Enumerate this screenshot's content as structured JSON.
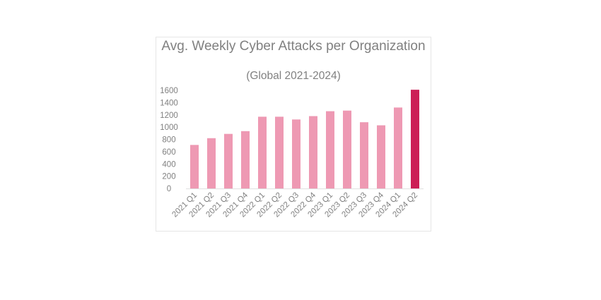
{
  "chart_data": {
    "type": "bar",
    "title": "Avg. Weekly Cyber Attacks per Organization",
    "subtitle": "(Global 2021-2024)",
    "xlabel": "",
    "ylabel": "",
    "ylim": [
      0,
      1600
    ],
    "yticks": [
      0,
      200,
      400,
      600,
      800,
      1000,
      1200,
      1400,
      1600
    ],
    "grid": false,
    "categories": [
      "2021 Q1",
      "2021 Q2",
      "2021 Q3",
      "2021 Q4",
      "2022 Q1",
      "2022 Q2",
      "2022 Q3",
      "2022 Q4",
      "2023 Q1",
      "2023 Q2",
      "2023 Q3",
      "2023 Q4",
      "2024 Q1",
      "2024 Q2"
    ],
    "values": [
      710,
      820,
      890,
      935,
      1170,
      1170,
      1125,
      1180,
      1260,
      1270,
      1080,
      1030,
      1320,
      1610
    ],
    "colors": {
      "bar": "#ee99b3",
      "highlight": "#cc1f56",
      "text": "#808080",
      "axis": "#e0e0e0"
    },
    "highlight_index": 13
  }
}
